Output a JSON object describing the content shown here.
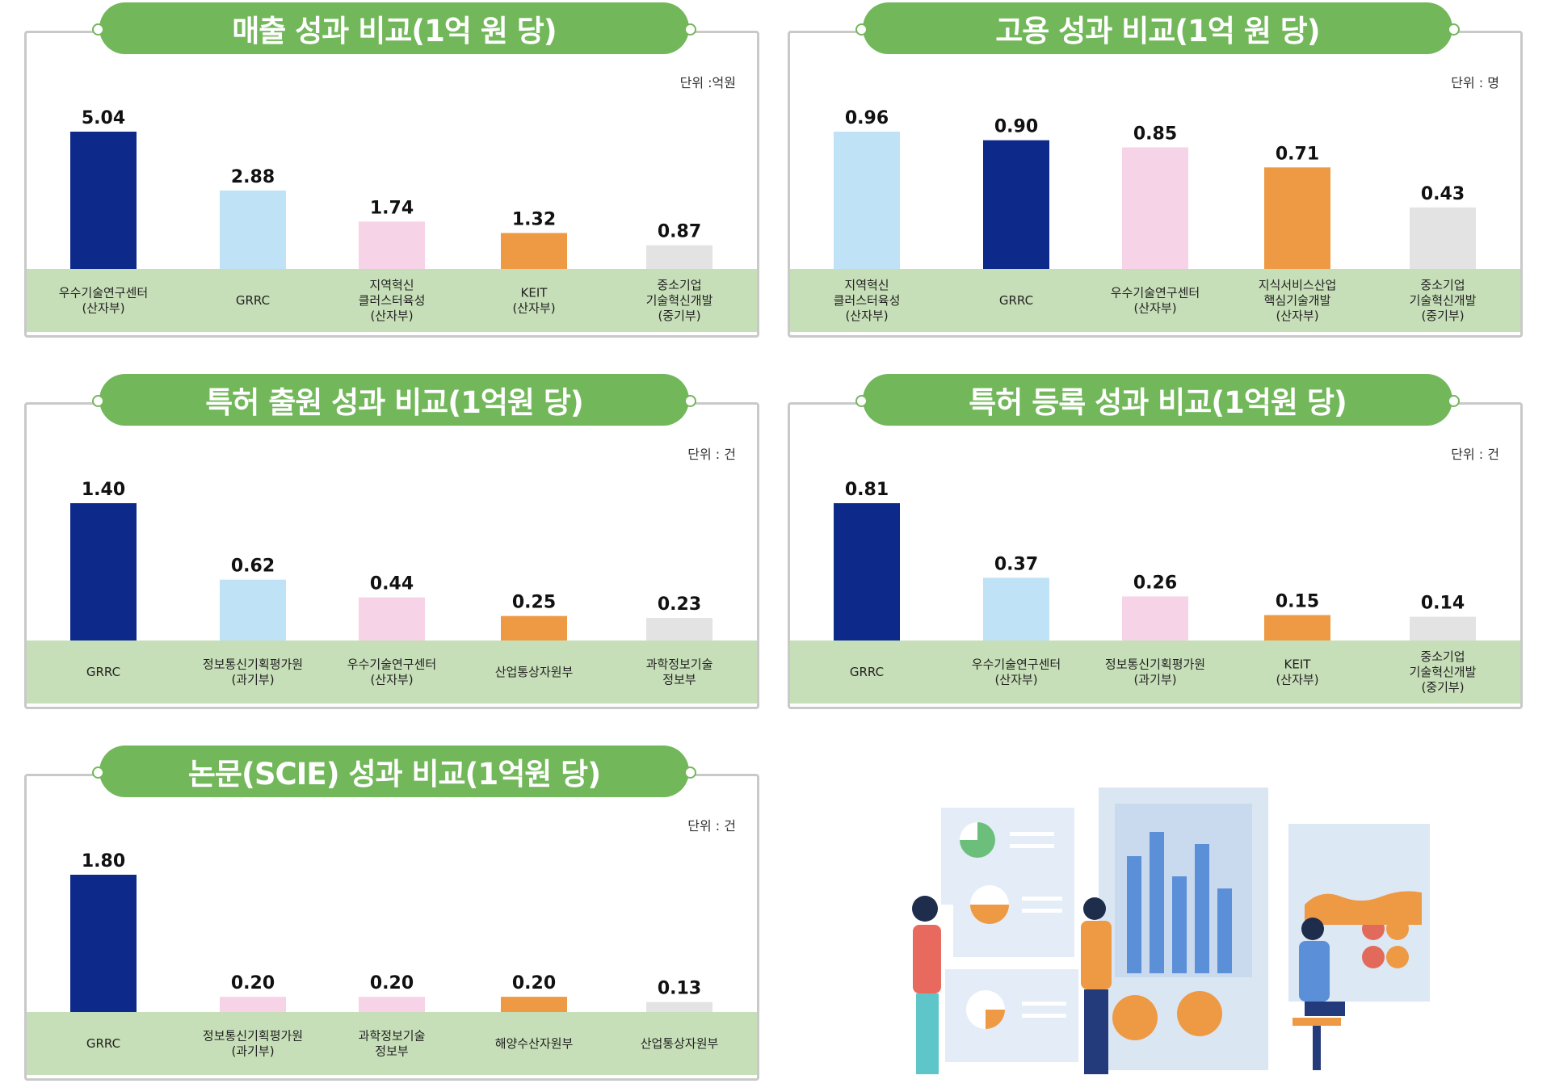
{
  "colors": {
    "header_green": "#72b75a",
    "label_band": "#c7dfb8",
    "navy": "#0d2a8a",
    "light_blue": "#bfe2f7",
    "pink": "#f6d3e6",
    "orange": "#ee9a44",
    "gray": "#e3e3e3"
  },
  "chart_data": [
    {
      "type": "bar",
      "title": "매출 성과 비교(1억 원 당)",
      "unit": "단위 :억원",
      "categories": [
        [
          "우수기술연구센터",
          "(산자부)"
        ],
        [
          "GRRC"
        ],
        [
          "지역혁신",
          "클러스터육성",
          "(산자부)"
        ],
        [
          "KEIT",
          "(산자부)"
        ],
        [
          "중소기업",
          "기술혁신개발",
          "(중기부)"
        ]
      ],
      "values": [
        5.04,
        2.88,
        1.74,
        1.32,
        0.87
      ],
      "value_labels": [
        "5.04",
        "2.88",
        "1.74",
        "1.32",
        "0.87"
      ],
      "colors": [
        "navy",
        "light_blue",
        "pink",
        "orange",
        "gray"
      ]
    },
    {
      "type": "bar",
      "title": "고용 성과 비교(1억 원 당)",
      "unit": "단위 : 명",
      "categories": [
        [
          "지역혁신",
          "클러스터육성",
          "(산자부)"
        ],
        [
          "GRRC"
        ],
        [
          "우수기술연구센터",
          "(산자부)"
        ],
        [
          "지식서비스산업",
          "핵심기술개발",
          "(산자부)"
        ],
        [
          "중소기업",
          "기술혁신개발",
          "(중기부)"
        ]
      ],
      "values": [
        0.96,
        0.9,
        0.85,
        0.71,
        0.43
      ],
      "value_labels": [
        "0.96",
        "0.90",
        "0.85",
        "0.71",
        "0.43"
      ],
      "colors": [
        "light_blue",
        "navy",
        "pink",
        "orange",
        "gray"
      ]
    },
    {
      "type": "bar",
      "title": "특허 출원 성과 비교(1억원 당)",
      "unit": "단위 : 건",
      "categories": [
        [
          "GRRC"
        ],
        [
          "정보통신기획평가원",
          "(과기부)"
        ],
        [
          "우수기술연구센터",
          "(산자부)"
        ],
        [
          "산업통상자원부"
        ],
        [
          "과학정보기술",
          "정보부"
        ]
      ],
      "values": [
        1.4,
        0.62,
        0.44,
        0.25,
        0.23
      ],
      "value_labels": [
        "1.40",
        "0.62",
        "0.44",
        "0.25",
        "0.23"
      ],
      "colors": [
        "navy",
        "light_blue",
        "pink",
        "orange",
        "gray"
      ]
    },
    {
      "type": "bar",
      "title": "특허 등록 성과 비교(1억원 당)",
      "unit": "단위 : 건",
      "categories": [
        [
          "GRRC"
        ],
        [
          "우수기술연구센터",
          "(산자부)"
        ],
        [
          "정보통신기획평가원",
          "(과기부)"
        ],
        [
          "KEIT",
          "(산자부)"
        ],
        [
          "중소기업",
          "기술혁신개발",
          "(중기부)"
        ]
      ],
      "values": [
        0.81,
        0.37,
        0.26,
        0.15,
        0.14
      ],
      "value_labels": [
        "0.81",
        "0.37",
        "0.26",
        "0.15",
        "0.14"
      ],
      "colors": [
        "navy",
        "light_blue",
        "pink",
        "orange",
        "gray"
      ]
    },
    {
      "type": "bar",
      "title": "논문(SCIE) 성과 비교(1억원 당)",
      "unit": "단위 : 건",
      "categories": [
        [
          "GRRC"
        ],
        [
          "정보통신기획평가원",
          "(과기부)"
        ],
        [
          "과학정보기술",
          "정보부"
        ],
        [
          "해양수산자원부"
        ],
        [
          "산업통상자원부"
        ]
      ],
      "values": [
        1.8,
        0.2,
        0.2,
        0.2,
        0.13
      ],
      "value_labels": [
        "1.80",
        "0.20",
        "0.20",
        "0.20",
        "0.13"
      ],
      "colors": [
        "navy",
        "pink",
        "pink",
        "orange",
        "gray"
      ]
    }
  ],
  "illustration": {
    "description_icon": "data-analytics-illustration-icon"
  }
}
